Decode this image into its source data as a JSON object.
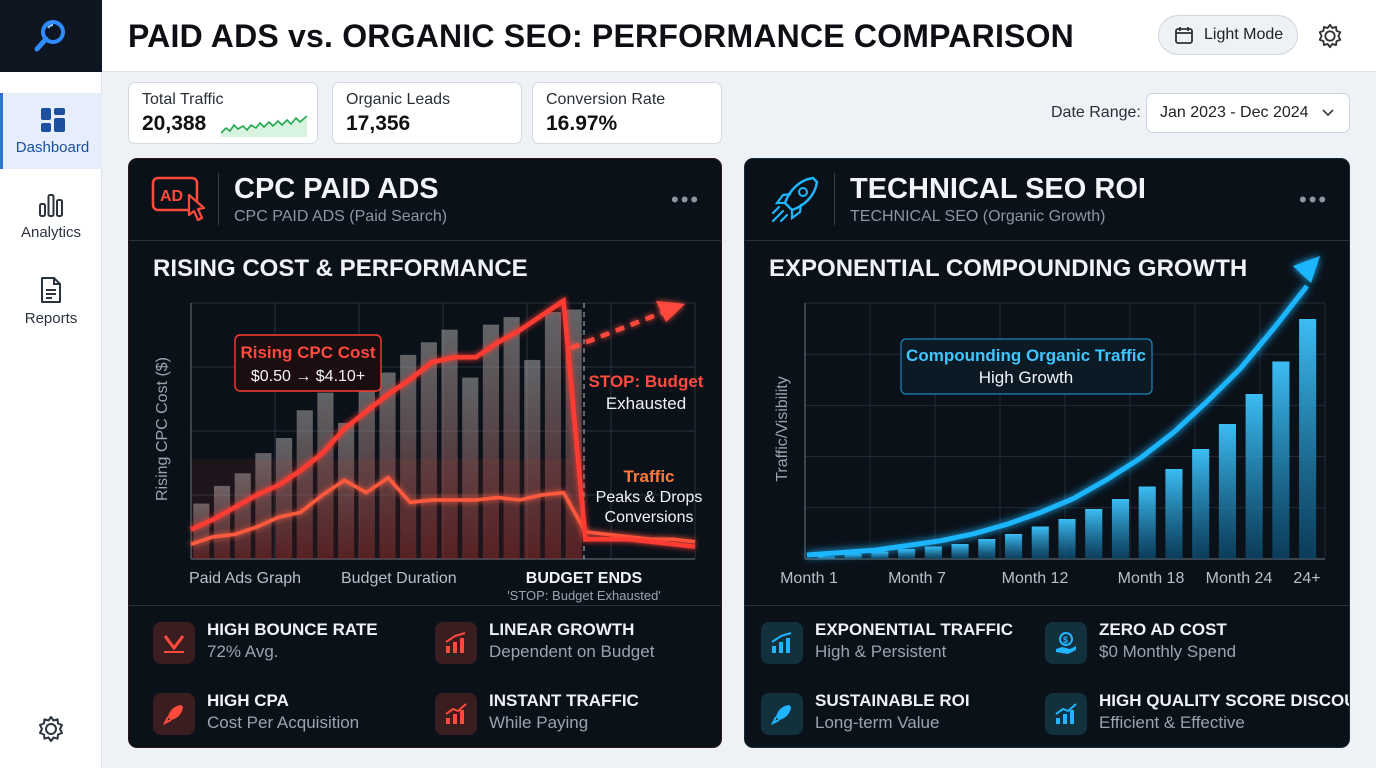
{
  "header": {
    "title": "PAID ADS vs. ORGANIC SEO: PERFORMANCE COMPARISON",
    "mode_label": "Light Mode"
  },
  "sidebar": {
    "items": [
      {
        "label": "Dashboard",
        "icon": "dashboard-icon",
        "active": true
      },
      {
        "label": "Analytics",
        "icon": "bar-chart-icon",
        "active": false
      },
      {
        "label": "Reports",
        "icon": "document-icon",
        "active": false
      }
    ]
  },
  "kpis": [
    {
      "label": "Total Traffic",
      "value": "20,388"
    },
    {
      "label": "Organic Leads",
      "value": "17,356"
    },
    {
      "label": "Conversion Rate",
      "value": "16.97%"
    }
  ],
  "date_range": {
    "label": "Date Range:",
    "value": "Jan 2023 - Dec 2024"
  },
  "colors": {
    "paid_accent": "#ff4a3d",
    "seo_accent": "#1fb6ff",
    "panel_bg": "#0b1119"
  },
  "paid": {
    "title": "CPC PAID ADS",
    "subtitle": "CPC PAID ADS (Paid Search)",
    "section_title": "RISING COST & PERFORMANCE",
    "features": [
      {
        "title": "HIGH BOUNCE RATE",
        "sub": "72% Avg.",
        "icon": "bounce-arrow-icon"
      },
      {
        "title": "LINEAR GROWTH",
        "sub": "Dependent on Budget",
        "icon": "growth-chart-icon"
      },
      {
        "title": "HIGH CPA",
        "sub": "Cost Per Acquisition",
        "icon": "rocket-icon"
      },
      {
        "title": "INSTANT TRAFFIC",
        "sub": "While Paying",
        "icon": "trend-chart-icon"
      }
    ]
  },
  "seo": {
    "title": "TECHNICAL SEO ROI",
    "subtitle": "TECHNICAL SEO (Organic Growth)",
    "section_title": "EXPONENTIAL COMPOUNDING GROWTH",
    "features": [
      {
        "title": "EXPONENTIAL TRAFFIC",
        "sub": "High & Persistent",
        "icon": "growth-chart-icon"
      },
      {
        "title": "ZERO AD COST",
        "sub": "$0 Monthly Spend",
        "icon": "coin-hand-icon"
      },
      {
        "title": "SUSTAINABLE ROI",
        "sub": "Long-term Value",
        "icon": "rocket-icon"
      },
      {
        "title": "HIGH QUALITY SCORE DISCOUNT",
        "sub": "Efficient & Effective",
        "icon": "trend-chart-icon"
      }
    ]
  },
  "chart_data": [
    {
      "type": "bar",
      "title": "RISING COST & PERFORMANCE",
      "ylabel": "Rising CPC Cost ($)",
      "x_tick_labels": [
        "Paid Ads Graph",
        "Budget Duration",
        "BUDGET ENDS"
      ],
      "budget_end_note": "'STOP: Budget Exhausted'",
      "bars": [
        0.22,
        0.29,
        0.34,
        0.42,
        0.48,
        0.59,
        0.66,
        0.54,
        0.71,
        0.74,
        0.81,
        0.86,
        0.91,
        0.72,
        0.93,
        0.96,
        0.79,
        0.98,
        0.99
      ],
      "series": [
        {
          "name": "Rising CPC Cost",
          "values": [
            0.12,
            0.16,
            0.21,
            0.26,
            0.3,
            0.36,
            0.43,
            0.53,
            0.6,
            0.67,
            0.73,
            0.8,
            0.82,
            0.82,
            0.88,
            0.93,
            0.99,
            1.05,
            0.08,
            0.08,
            0.08,
            0.07,
            0.06,
            0.05
          ]
        },
        {
          "name": "Traffic",
          "values": [
            0.06,
            0.09,
            0.1,
            0.13,
            0.17,
            0.19,
            0.26,
            0.32,
            0.27,
            0.33,
            0.23,
            0.24,
            0.24,
            0.24,
            0.25,
            0.24,
            0.26,
            0.27,
            0.11,
            0.1,
            0.09,
            0.08,
            0.08,
            0.07
          ]
        }
      ],
      "annotations": [
        {
          "title": "Rising CPC Cost",
          "text": "$0.50 → $4.10+"
        },
        {
          "title": "STOP: Budget",
          "text": "Exhausted"
        },
        {
          "title": "Traffic",
          "text": "Peaks & Drops",
          "text2": "Conversions"
        }
      ]
    },
    {
      "type": "bar",
      "title": "EXPONENTIAL COMPOUNDING GROWTH",
      "ylabel": "Traffic/Visibility",
      "x_tick_labels": [
        "Month 1",
        "Month 7",
        "Month 12",
        "Month 18",
        "Month 24",
        "24+"
      ],
      "bars": [
        0.01,
        0.02,
        0.03,
        0.04,
        0.05,
        0.06,
        0.08,
        0.1,
        0.13,
        0.16,
        0.2,
        0.24,
        0.29,
        0.36,
        0.44,
        0.54,
        0.66,
        0.79,
        0.96
      ],
      "series": [
        {
          "name": "Compounding Organic Traffic",
          "values": [
            0.0,
            0.01,
            0.02,
            0.04,
            0.06,
            0.09,
            0.13,
            0.18,
            0.24,
            0.32,
            0.41,
            0.52,
            0.65,
            0.79,
            0.96,
            1.14
          ]
        }
      ],
      "annotations": [
        {
          "title": "Compounding Organic Traffic",
          "text": "High Growth"
        }
      ]
    }
  ]
}
